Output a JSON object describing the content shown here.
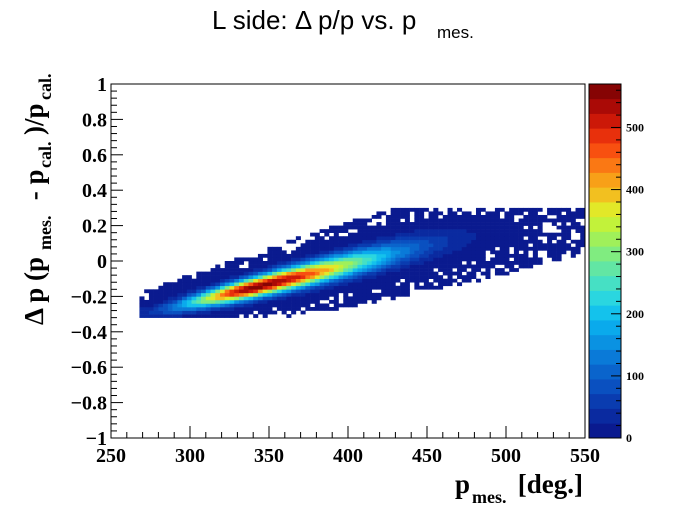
{
  "chart_data": {
    "type": "heatmap",
    "title": "L side: Δ p/p vs. p",
    "title_subscript": "mes.",
    "xlabel": "p",
    "xlabel_subscript": "mes.",
    "xlabel_suffix": " [deg.]",
    "ylabel_parts": [
      "Δ p (p",
      "mes.",
      " - p",
      "cal.",
      ")/p",
      "cal."
    ],
    "xlim": [
      250,
      550
    ],
    "ylim": [
      -1,
      1
    ],
    "zlim": [
      0,
      570
    ],
    "x_ticks": [
      250,
      300,
      350,
      400,
      450,
      500,
      550
    ],
    "x_tick_labels": [
      "250",
      "300",
      "350",
      "400",
      "450",
      "500",
      "550"
    ],
    "y_ticks": [
      -1,
      -0.8,
      -0.6,
      -0.4,
      -0.2,
      0,
      0.2,
      0.4,
      0.6,
      0.8,
      1
    ],
    "y_tick_labels": [
      "−1",
      "−0.8",
      "−0.6",
      "−0.4",
      "−0.2",
      "0",
      "0.2",
      "0.4",
      "0.6",
      "0.8",
      "1"
    ],
    "z_ticks": [
      0,
      100,
      200,
      300,
      400,
      500
    ],
    "z_tick_labels": [
      "0",
      "100",
      "200",
      "300",
      "400",
      "500"
    ],
    "palette": [
      "#0a1a8f",
      "#0a2aa0",
      "#0a3cb0",
      "#0a50c0",
      "#0a64cc",
      "#0a7ad8",
      "#0a92e2",
      "#0aaaec",
      "#14c2ec",
      "#2ad6e0",
      "#46e0c4",
      "#62e6a4",
      "#80ec80",
      "#a0f05a",
      "#c2f23a",
      "#e2e828",
      "#f2c020",
      "#f8a018",
      "#fa7814",
      "#f85010",
      "#e8300c",
      "#cc1808",
      "#aa0a06",
      "#860404"
    ],
    "distribution": {
      "description_free_params": "density model used to draw bins",
      "ridge_x": [
        275,
        340,
        450,
        530
      ],
      "ridge_y": [
        -0.29,
        -0.15,
        0.09,
        0.22
      ],
      "peak_x": 340,
      "peak_y": -0.15,
      "peak_count": 565,
      "bin_dx": 3,
      "bin_dy": 0.02
    }
  }
}
